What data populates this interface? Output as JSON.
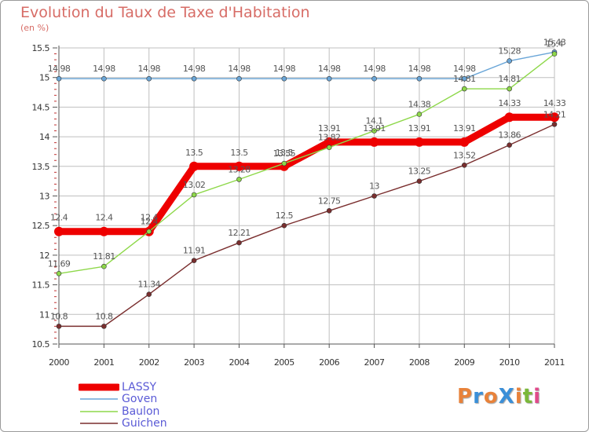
{
  "header": {
    "title": "Evolution du Taux de Taxe d'Habitation",
    "subtitle": "(en %)"
  },
  "logo": {
    "text": "ProXiti",
    "colors": [
      "#e8823a",
      "#3a8fd8",
      "#e8823a",
      "#3a8fd8",
      "#e8823a",
      "#7ab83a",
      "#e04a8a"
    ]
  },
  "colors": {
    "grid": "#bfbfbf",
    "axis": "#555555",
    "tick_text": "#333333",
    "value_text": "#555555",
    "legend_text": "#5a5ad6"
  },
  "chart_data": {
    "type": "line",
    "title": "Evolution du Taux de Taxe d'Habitation",
    "subtitle": "(en %)",
    "xlabel": "",
    "ylabel": "",
    "x": [
      "2000",
      "2001",
      "2002",
      "2003",
      "2004",
      "2005",
      "2006",
      "2007",
      "2008",
      "2009",
      "2010",
      "2011"
    ],
    "ylim": [
      10.5,
      15.5
    ],
    "yticks": [
      "10.5",
      "11",
      "11.5",
      "12",
      "12.5",
      "13",
      "13.5",
      "14",
      "14.5",
      "15",
      "15.5"
    ],
    "grid": true,
    "legend_position": "bottom-left",
    "series": [
      {
        "name": "LASSY",
        "color": "#ee0000",
        "weight": "heavy",
        "values": [
          12.4,
          12.4,
          12.4,
          13.5,
          13.5,
          13.5,
          13.91,
          13.91,
          13.91,
          13.91,
          14.33,
          14.33
        ],
        "labels": [
          "12.4",
          "12.4",
          "12.4",
          "13.5",
          "13.5",
          "13.5",
          "13.91",
          "13.91",
          "13.91",
          "13.91",
          "14.33",
          "14.33"
        ]
      },
      {
        "name": "Goven",
        "color": "#6aa6d8",
        "weight": "thin",
        "values": [
          14.98,
          14.98,
          14.98,
          14.98,
          14.98,
          14.98,
          14.98,
          14.98,
          14.98,
          14.98,
          15.28,
          15.43
        ],
        "labels": [
          "14.98",
          "14.98",
          "14.98",
          "14.98",
          "14.98",
          "14.98",
          "14.98",
          "14.98",
          "14.98",
          "14.98",
          "15.28",
          "15.43"
        ]
      },
      {
        "name": "Baulon",
        "color": "#8ed84a",
        "weight": "thin",
        "values": [
          11.69,
          11.81,
          12.4,
          13.02,
          13.28,
          13.55,
          13.82,
          14.1,
          14.38,
          14.81,
          14.81,
          15.4
        ],
        "labels": [
          "11.69",
          "11.81",
          "12.4",
          "13.02",
          "13.28",
          "13.55",
          "13.82",
          "14.1",
          "14.38",
          "14.81",
          "14.81",
          "15.4"
        ]
      },
      {
        "name": "Guichen",
        "color": "#7a2e2e",
        "weight": "thin",
        "values": [
          10.8,
          10.8,
          11.34,
          11.91,
          12.21,
          12.5,
          12.75,
          13.0,
          13.25,
          13.52,
          13.86,
          14.21
        ],
        "labels": [
          "10.8",
          "10.8",
          "11.34",
          "11.91",
          "12.21",
          "12.5",
          "12.75",
          "13",
          "13.25",
          "13.52",
          "13.86",
          "14.21"
        ]
      }
    ]
  }
}
